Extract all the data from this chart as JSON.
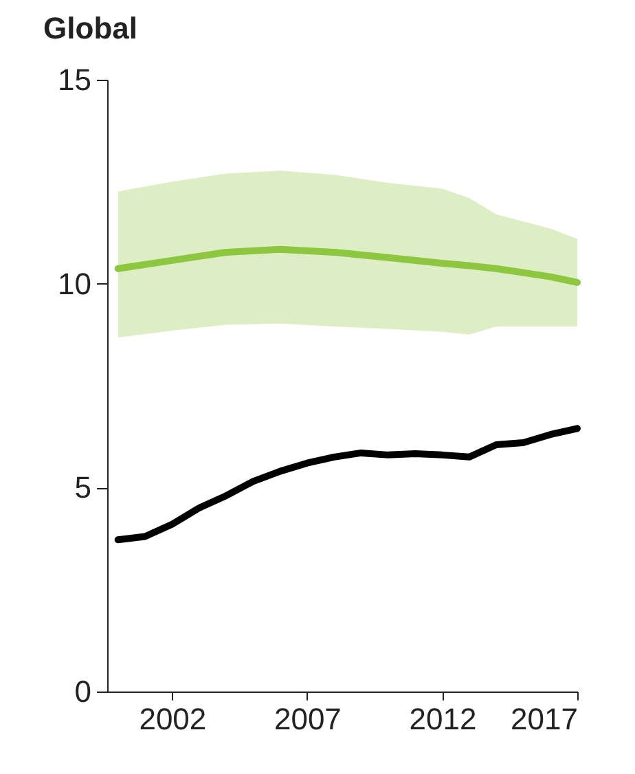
{
  "chart_data": {
    "type": "line",
    "title": "Global",
    "xlim": [
      1999.6,
      2017
    ],
    "xticks": [
      2002,
      2007,
      2012,
      2017
    ],
    "ylim": [
      0,
      15
    ],
    "yticks": [
      0,
      5,
      10,
      15
    ],
    "grid": false,
    "marker": "none",
    "line_style": "solid",
    "series": [
      {
        "color": "#8dc63f",
        "x": [
          2000,
          2002,
          2004,
          2006,
          2008,
          2010,
          2012,
          2013,
          2014,
          2016,
          2017
        ],
        "values": [
          10.37,
          10.57,
          10.77,
          10.84,
          10.77,
          10.64,
          10.5,
          10.44,
          10.37,
          10.17,
          10.03
        ],
        "lower": [
          8.68,
          8.85,
          8.99,
          9.02,
          8.95,
          8.89,
          8.82,
          8.75,
          8.95,
          8.95,
          8.95
        ],
        "upper": [
          12.26,
          12.5,
          12.7,
          12.77,
          12.67,
          12.47,
          12.33,
          12.1,
          11.7,
          11.35,
          11.1
        ]
      },
      {
        "color": "#000000",
        "x": [
          2000,
          2001,
          2002,
          2003,
          2004,
          2005,
          2006,
          2007,
          2008,
          2009,
          2010,
          2011,
          2012,
          2013,
          2014,
          2015,
          2016,
          2017
        ],
        "values": [
          3.72,
          3.8,
          4.1,
          4.5,
          4.8,
          5.15,
          5.4,
          5.6,
          5.75,
          5.85,
          5.8,
          5.83,
          5.8,
          5.75,
          6.05,
          6.1,
          6.3,
          6.45
        ]
      }
    ]
  }
}
